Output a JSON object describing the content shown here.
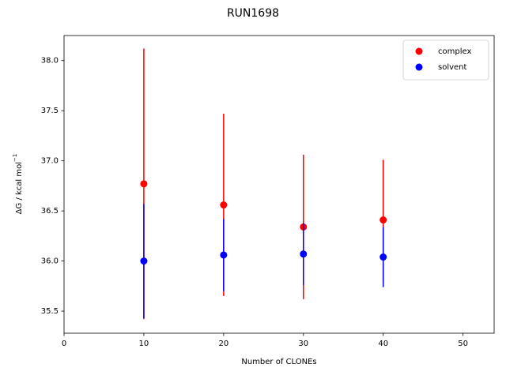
{
  "chart_data": {
    "type": "scatter",
    "title": "RUN1698",
    "xlabel": "Number of CLONEs",
    "ylabel": "ΔG / kcal mol",
    "ylabel_sup": "−1",
    "x": [
      10,
      20,
      30,
      40
    ],
    "series": [
      {
        "name": "complex",
        "color": "#ff0000",
        "values": [
          36.77,
          36.56,
          36.34,
          36.41
        ],
        "errors": [
          1.35,
          0.91,
          0.72,
          0.6
        ]
      },
      {
        "name": "solvent",
        "color": "#0000ff",
        "values": [
          36.0,
          36.06,
          36.07,
          36.04
        ],
        "errors": [
          0.57,
          0.36,
          0.31,
          0.3
        ]
      }
    ],
    "xlim": [
      0,
      53.9
    ],
    "ylim": [
      35.28,
      38.25
    ],
    "xticks": [
      0,
      10,
      20,
      30,
      40,
      50
    ],
    "yticks": [
      35.5,
      {
        "value": 36.0,
        "label": "36.0"
      },
      36.5,
      {
        "value": 37.0,
        "label": "37.0"
      },
      37.5,
      {
        "value": 38.0,
        "label": "38.0"
      }
    ],
    "legend": "upper right"
  }
}
